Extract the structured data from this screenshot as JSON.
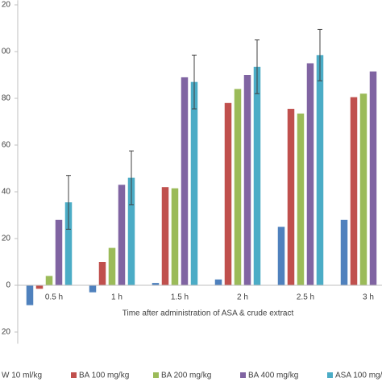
{
  "chart_data": {
    "type": "bar",
    "xlabel": "Time after administration of ASA & crude extract",
    "categories": [
      "0.5 h",
      "1 h",
      "1.5 h",
      "2 h",
      "2.5 h",
      "3 h"
    ],
    "series": [
      {
        "name": "W 10 ml/kg",
        "color": "#4f81bd",
        "values": [
          -8.5,
          -3,
          1,
          2.5,
          25,
          28
        ]
      },
      {
        "name": "BA 100 mg/kg",
        "color": "#c0504d",
        "values": [
          -1.5,
          10,
          42,
          78,
          75.5,
          80.5
        ]
      },
      {
        "name": "BA 200 mg/kg",
        "color": "#9bbb59",
        "values": [
          4,
          16,
          41.5,
          84,
          73.5,
          82
        ]
      },
      {
        "name": "BA 400 mg/kg",
        "color": "#8064a2",
        "values": [
          28,
          43,
          89,
          90,
          95,
          91.5
        ]
      },
      {
        "name": "ASA 100 mg/kg",
        "color": "#4bacc6",
        "values": [
          35.5,
          46,
          87,
          93.5,
          98.5,
          null
        ],
        "errors": [
          11.5,
          11.5,
          11.5,
          11.5,
          11,
          null
        ]
      }
    ],
    "ylim": [
      -25,
      122
    ],
    "yticks": [
      {
        "value": -20,
        "label": "20"
      },
      0,
      20,
      40,
      60,
      80,
      {
        "value": 100,
        "label": "00"
      },
      {
        "value": 120,
        "label": "20"
      }
    ],
    "legend": "bottom"
  }
}
